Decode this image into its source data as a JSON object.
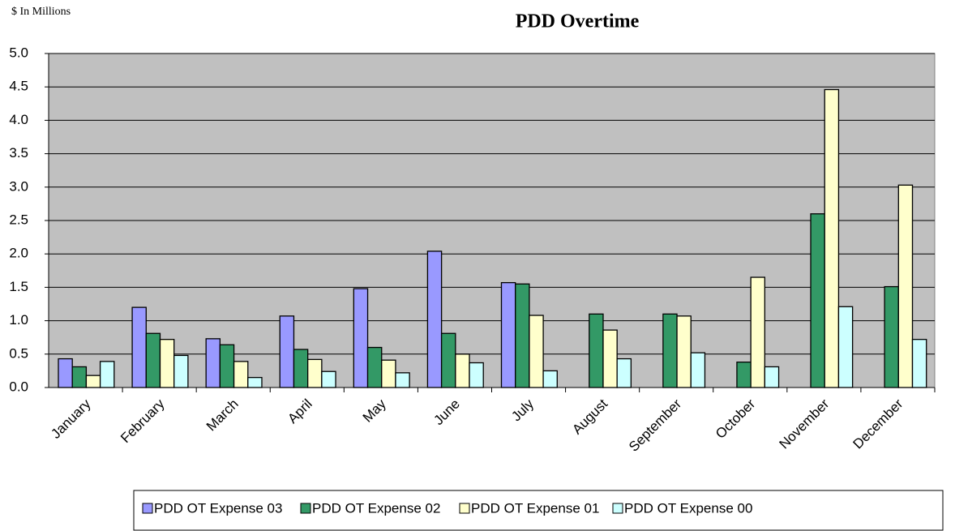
{
  "chart_data": {
    "type": "bar",
    "title": "PDD Overtime",
    "subtitle": "$ In Millions",
    "categories": [
      "January",
      "February",
      "March",
      "April",
      "May",
      "June",
      "July",
      "August",
      "September",
      "October",
      "November",
      "December"
    ],
    "series": [
      {
        "name": "PDD OT Expense 03",
        "color": "#9999ff",
        "values": [
          0.43,
          1.2,
          0.73,
          1.07,
          1.48,
          2.04,
          1.57,
          null,
          null,
          null,
          null,
          null
        ]
      },
      {
        "name": "PDD OT Expense 02",
        "color": "#339966",
        "values": [
          0.31,
          0.81,
          0.64,
          0.57,
          0.6,
          0.81,
          1.55,
          1.1,
          1.1,
          0.38,
          2.6,
          1.51
        ]
      },
      {
        "name": "PDD OT Expense 01",
        "color": "#ffffcc",
        "values": [
          0.18,
          0.72,
          0.39,
          0.42,
          0.41,
          0.5,
          1.08,
          0.86,
          1.07,
          1.65,
          4.46,
          3.03
        ]
      },
      {
        "name": "PDD OT Expense 00",
        "color": "#ccffff",
        "values": [
          0.39,
          0.48,
          0.15,
          0.24,
          0.22,
          0.37,
          0.25,
          0.43,
          0.52,
          0.31,
          1.21,
          0.72
        ]
      }
    ],
    "ylim": [
      0,
      5
    ],
    "yticks": [
      {
        "value": 0,
        "label": "0.0"
      },
      0.5,
      {
        "value": 1,
        "label": "1.0"
      },
      1.5,
      {
        "value": 2,
        "label": "2.0"
      },
      2.5,
      {
        "value": 3,
        "label": "3.0"
      },
      3.5,
      {
        "value": 4,
        "label": "4.0"
      },
      4.5,
      {
        "value": 5,
        "label": "5.0"
      }
    ],
    "grid": true,
    "plot_background": "#c0c0c0",
    "legend": "bottom"
  }
}
